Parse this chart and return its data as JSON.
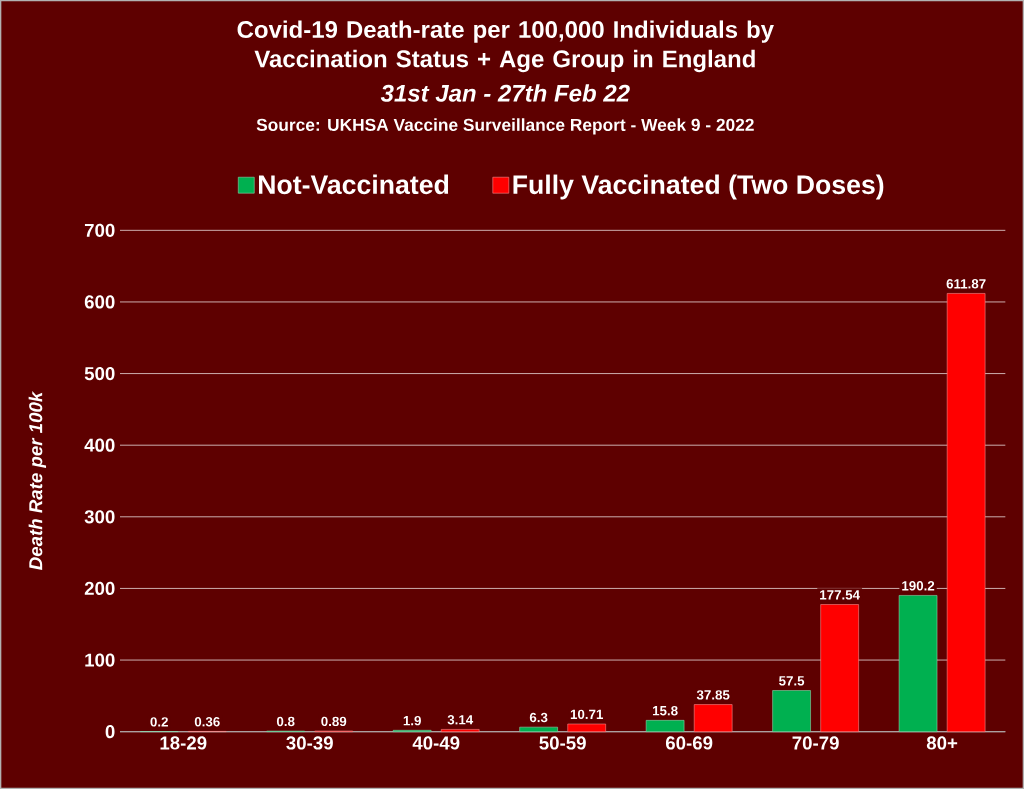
{
  "chart_data": {
    "type": "bar",
    "title": "Covid-19 Death-rate per 100,000 Individuals by Vaccination Status + Age Group in England",
    "subtitle": "31st Jan - 27th Feb 22",
    "annotations": [
      "Source: UKHSA Vaccine Surveillance Report - Week 9 - 2022"
    ],
    "ylabel": "Death Rate per 100k",
    "categories": [
      "18-29",
      "30-39",
      "40-49",
      "50-59",
      "60-69",
      "70-79",
      "80+"
    ],
    "series": [
      {
        "name": "Not-Vaccinated",
        "color": "#00b050",
        "values": [
          0.2,
          0.8,
          1.9,
          6.3,
          15.8,
          57.5,
          190.2
        ]
      },
      {
        "name": "Fully Vaccinated (Two Doses)",
        "color": "#ff0000",
        "values": [
          0.36,
          0.89,
          3.14,
          10.71,
          37.85,
          177.54,
          611.87
        ]
      }
    ],
    "ylim": [
      0,
      700
    ],
    "yticks": [
      0,
      100,
      200,
      300,
      400,
      500,
      600,
      700
    ],
    "grid": "y",
    "legend": "top",
    "data_labels": true
  }
}
